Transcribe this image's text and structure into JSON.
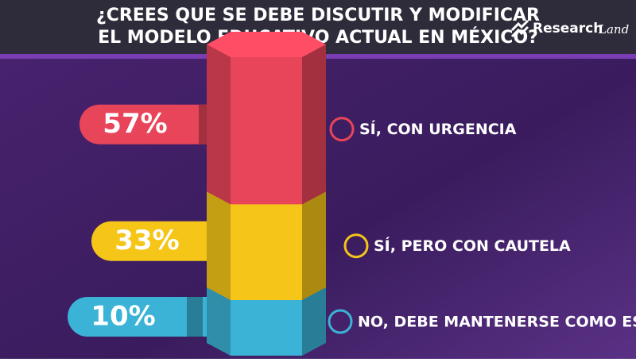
{
  "chart_data": {
    "type": "prism-stack",
    "title": [
      "¿CREES QUE SE DEBE DISCUTIR Y MODIFICAR",
      "EL MODELO EDUCATIVO ACTUAL EN MÉXICO?"
    ],
    "logo": [
      "Research",
      "Land"
    ],
    "categories": [
      "SÍ, CON URGENCIA",
      "SÍ, PERO CON CAUTELA",
      "NO, DEBE MANTENERSE COMO ESTÁ"
    ],
    "values": [
      57,
      33,
      10
    ],
    "value_labels": [
      "57%",
      "33%",
      "10%"
    ],
    "colors": [
      "#e8455a",
      "#f5c518",
      "#3bb3d6"
    ]
  }
}
